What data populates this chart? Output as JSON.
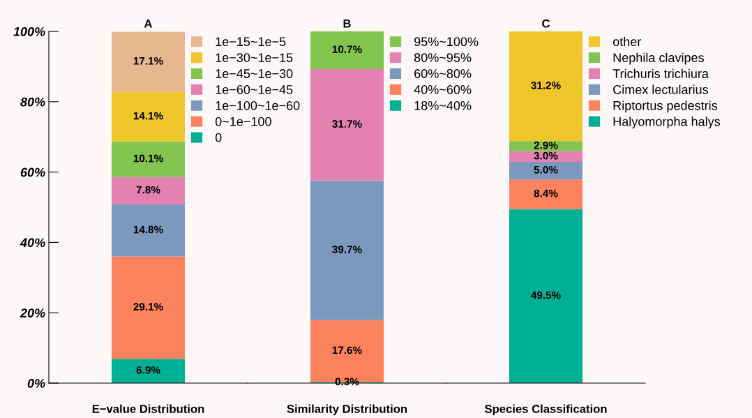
{
  "chart_data": [
    {
      "type": "bar",
      "title": "A",
      "categories": [
        "E−value Distribution"
      ],
      "stacked": true,
      "legend": "top right",
      "grid": false,
      "ylim": [
        0,
        100
      ],
      "yticks": [
        {
          "value": 0,
          "label": "0%"
        },
        {
          "value": 20,
          "label": "20%"
        },
        {
          "value": 40,
          "label": "40%"
        },
        {
          "value": 60,
          "label": "60%"
        },
        {
          "value": 80,
          "label": "80%"
        },
        {
          "value": 100,
          "label": "100%"
        }
      ],
      "series": [
        {
          "name": "0",
          "color": "#00b094",
          "values": [
            6.9
          ],
          "value_labels": [
            "6.9%"
          ]
        },
        {
          "name": "0~1e−100",
          "color": "#fc825d",
          "values": [
            29.1
          ],
          "value_labels": [
            "29.1%"
          ]
        },
        {
          "name": "1e−100~1e−60",
          "color": "#7b98bd",
          "values": [
            14.8
          ],
          "value_labels": [
            "14.8%"
          ]
        },
        {
          "name": "1e−60~1e−45",
          "color": "#e382b0",
          "values": [
            7.8
          ],
          "value_labels": [
            "7.8%"
          ]
        },
        {
          "name": "1e−45~1e−30",
          "color": "#83c44e",
          "values": [
            10.1
          ],
          "value_labels": [
            "10.1%"
          ]
        },
        {
          "name": "1e−30~1e−15",
          "color": "#f0c62d",
          "values": [
            14.1
          ],
          "value_labels": [
            "14.1%"
          ]
        },
        {
          "name": "1e−15~1e−5",
          "color": "#e7b88f",
          "values": [
            17.1
          ],
          "value_labels": [
            "17.1%"
          ]
        }
      ]
    },
    {
      "type": "bar",
      "title": "B",
      "categories": [
        "Similarity Distribution"
      ],
      "stacked": true,
      "legend": "top right",
      "grid": false,
      "ylim": [
        0,
        100
      ],
      "tick_labels": "x",
      "series": [
        {
          "name": "18%~40%",
          "color": "#00b094",
          "values": [
            0.3
          ],
          "value_labels": [
            "0.3%"
          ]
        },
        {
          "name": "40%~60%",
          "color": "#fc825d",
          "values": [
            17.6
          ],
          "value_labels": [
            "17.6%"
          ]
        },
        {
          "name": "60%~80%",
          "color": "#7b98bd",
          "values": [
            39.7
          ],
          "value_labels": [
            "39.7%"
          ]
        },
        {
          "name": "80%~95%",
          "color": "#e382b0",
          "values": [
            31.7
          ],
          "value_labels": [
            "31.7%"
          ]
        },
        {
          "name": "95%~100%",
          "color": "#83c44e",
          "values": [
            10.7
          ],
          "value_labels": [
            "10.7%"
          ]
        }
      ]
    },
    {
      "type": "bar",
      "title": "C",
      "categories": [
        "Species Classification"
      ],
      "stacked": true,
      "legend": "top right",
      "grid": false,
      "ylim": [
        0,
        100
      ],
      "tick_labels": "x",
      "series": [
        {
          "name": "Halyomorpha halys",
          "color": "#00b094",
          "values": [
            49.5
          ],
          "value_labels": [
            "49.5%"
          ]
        },
        {
          "name": "Riptortus pedestris",
          "color": "#fc825d",
          "values": [
            8.4
          ],
          "value_labels": [
            "8.4%"
          ]
        },
        {
          "name": "Cimex lectularius",
          "color": "#7b98bd",
          "values": [
            5.0
          ],
          "value_labels": [
            "5.0%"
          ]
        },
        {
          "name": "Trichuris trichiura",
          "color": "#e382b0",
          "values": [
            3.0
          ],
          "value_labels": [
            "3.0%"
          ]
        },
        {
          "name": "Nephila clavipes",
          "color": "#83c44e",
          "values": [
            2.9
          ],
          "value_labels": [
            "2.9%"
          ]
        },
        {
          "name": "other",
          "color": "#f0c62d",
          "values": [
            31.2
          ],
          "value_labels": [
            "31.2%"
          ]
        }
      ]
    }
  ]
}
